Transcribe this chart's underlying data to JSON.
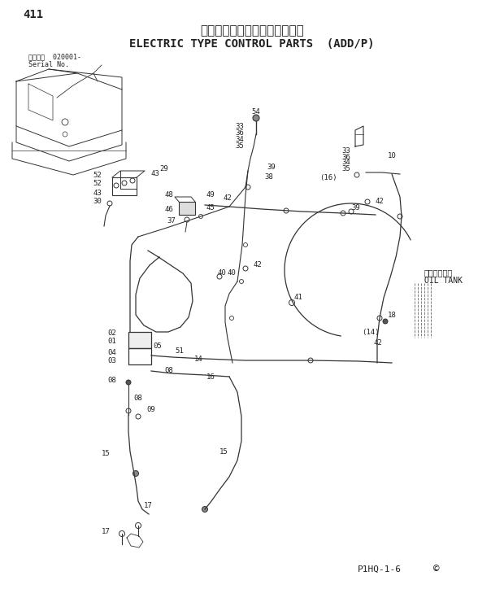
{
  "title_jp": "電気式操作用品（ＡＤＤ／Ｐ）",
  "title_en": "ELECTRIC TYPE CONTROL PARTS  (ADD/P)",
  "page_num": "411",
  "serial_info_jp": "通用号機  020001-",
  "serial_info_en": "Serial No.",
  "footer": "P1HQ-1-6",
  "copyright": "©",
  "bg_color": "#ffffff",
  "line_color": "#333333",
  "text_color": "#222222",
  "label_fontsize": 6.5,
  "title_fontsize_jp": 11,
  "title_fontsize_en": 10,
  "oil_tank_jp": "オイルタンク",
  "oil_tank_en": "OIL TANK"
}
